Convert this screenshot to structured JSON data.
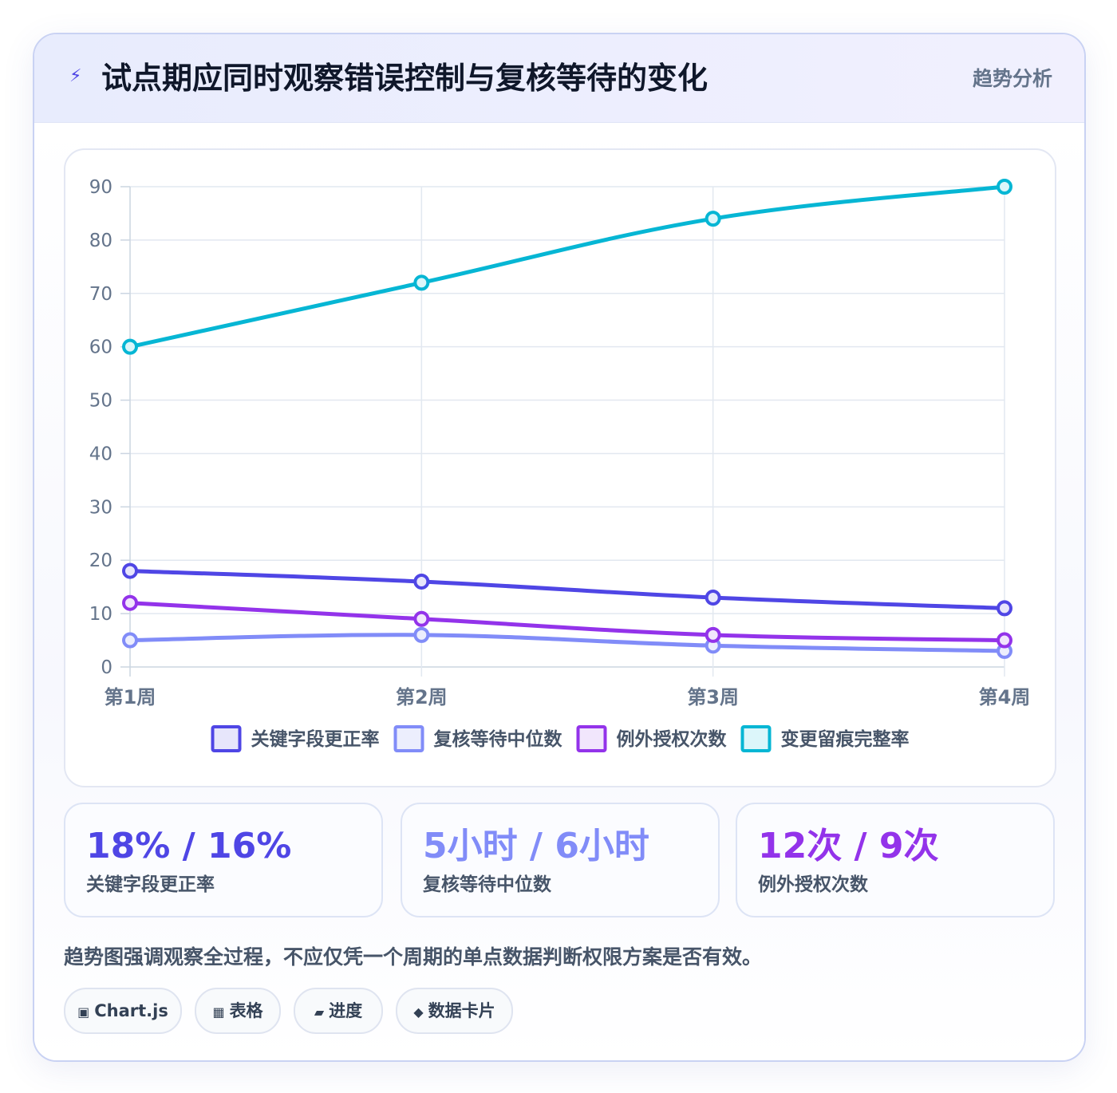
{
  "header": {
    "icon": "lightning-icon",
    "title": "试点期应同时观察错误控制与复核等待的变化",
    "tag": "趋势分析"
  },
  "chart_data": {
    "type": "line",
    "categories": [
      "第1周",
      "第2周",
      "第3周",
      "第4周"
    ],
    "ylim": [
      0,
      90
    ],
    "yticks": [
      0,
      10,
      20,
      30,
      40,
      50,
      60,
      70,
      80,
      90
    ],
    "grid": true,
    "legend_position": "bottom",
    "series": [
      {
        "name": "关键字段更正率",
        "values": [
          18,
          16,
          13,
          11
        ],
        "color": "#4f46e5",
        "fill": "#e7e6fb"
      },
      {
        "name": "复核等待中位数",
        "values": [
          5,
          6,
          4,
          3
        ],
        "color": "#818cf8",
        "fill": "#eceefd"
      },
      {
        "name": "例外授权次数",
        "values": [
          12,
          9,
          6,
          5
        ],
        "color": "#9333ea",
        "fill": "#f1e6fc"
      },
      {
        "name": "变更留痕完整率",
        "values": [
          60,
          72,
          84,
          90
        ],
        "color": "#06b6d4",
        "fill": "#dcf6fa"
      }
    ]
  },
  "kpis": [
    {
      "value": "18% / 16%",
      "label": "关键字段更正率",
      "color": "#4f46e5"
    },
    {
      "value": "5小时 / 6小时",
      "label": "复核等待中位数",
      "color": "#818cf8"
    },
    {
      "value": "12次 / 9次",
      "label": "例外授权次数",
      "color": "#9333ea"
    }
  ],
  "note": "趋势图强调观察全过程，不应仅凭一个周期的单点数据判断权限方案是否有效。",
  "chips": [
    {
      "icon": "▣",
      "icon_name": "chart-icon",
      "label": "Chart.js"
    },
    {
      "icon": "▦",
      "icon_name": "table-icon",
      "label": "表格"
    },
    {
      "icon": "▰",
      "icon_name": "progress-icon",
      "label": "进度"
    },
    {
      "icon": "◆",
      "icon_name": "card-icon",
      "label": "数据卡片"
    }
  ]
}
